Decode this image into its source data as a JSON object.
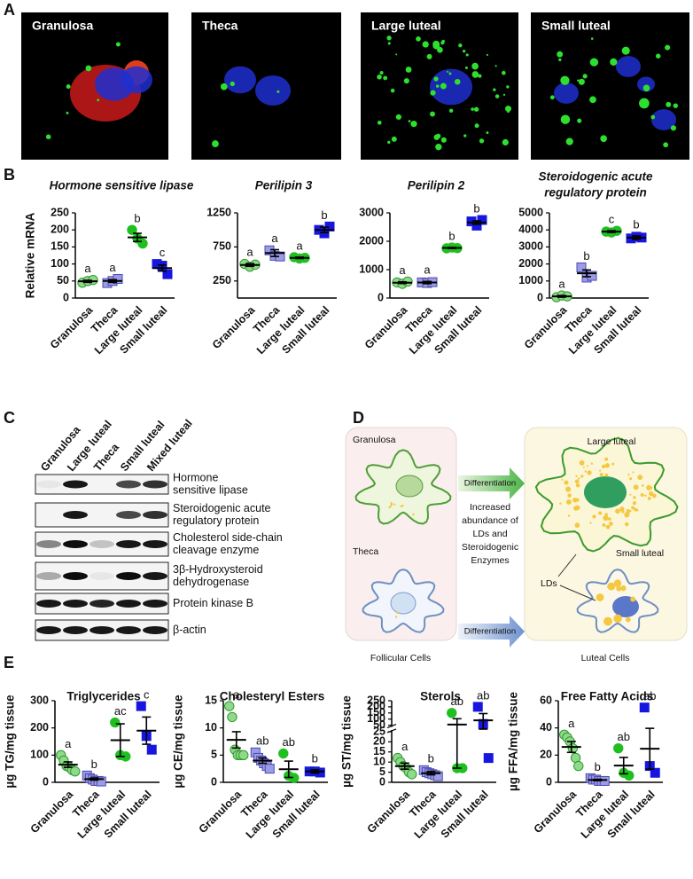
{
  "panel_labels": [
    "A",
    "B",
    "C",
    "D",
    "E"
  ],
  "images": [
    "Granulosa",
    "Theca",
    "Large luteal",
    "Small luteal"
  ],
  "chart_data": [
    {
      "type": "dotplot",
      "title": "Hormone sensitive lipase",
      "ylabel": "Relative mRNA",
      "categories": [
        "Granulosa",
        "Theca",
        "Large luteal",
        "Small luteal"
      ],
      "points": [
        [
          45,
          50,
          53
        ],
        [
          44,
          50,
          56
        ],
        [
          200,
          175,
          160
        ],
        [
          100,
          95,
          70
        ]
      ],
      "means": [
        49,
        50,
        178,
        88
      ],
      "errors": [
        3,
        4,
        12,
        9
      ],
      "annotations": [
        "a",
        "a",
        "b",
        "c"
      ],
      "ylim": [
        0,
        250
      ],
      "yticks": [
        0,
        50,
        100,
        150,
        200,
        250
      ],
      "markers": [
        "circle",
        "square",
        "circle",
        "square"
      ],
      "colors": [
        "#8fd98a",
        "#9c9ce6",
        "#1fbf1f",
        "#1616e0"
      ],
      "edgecolors": [
        "#2e9a2e",
        "#4a4ab0",
        "#1fbf1f",
        "#1616e0"
      ]
    },
    {
      "type": "dotplot",
      "title": "Perilipin 3",
      "categories": [
        "Granulosa",
        "Theca",
        "Large luteal",
        "Small luteal"
      ],
      "points": [
        [
          500,
          460,
          490
        ],
        [
          700,
          620,
          610
        ],
        [
          600,
          580,
          590
        ],
        [
          1000,
          950,
          1050
        ]
      ],
      "means": [
        485,
        660,
        590,
        1000
      ],
      "errors": [
        20,
        50,
        10,
        40
      ],
      "annotations": [
        "a",
        "a",
        "a",
        "b"
      ],
      "ylim": [
        0,
        1250
      ],
      "yticks": [
        250,
        750,
        1250
      ],
      "markers": [
        "circle",
        "square",
        "circle",
        "square"
      ],
      "colors": [
        "#8fd98a",
        "#9c9ce6",
        "#1fbf1f",
        "#1616e0"
      ],
      "edgecolors": [
        "#2e9a2e",
        "#4a4ab0",
        "#1fbf1f",
        "#1616e0"
      ]
    },
    {
      "type": "dotplot",
      "title": "Perilipin 2",
      "categories": [
        "Granulosa",
        "Theca",
        "Large luteal",
        "Small luteal"
      ],
      "points": [
        [
          550,
          500,
          580
        ],
        [
          550,
          530,
          560
        ],
        [
          1750,
          1780,
          1760
        ],
        [
          2700,
          2550,
          2750
        ]
      ],
      "means": [
        540,
        545,
        1765,
        2660
      ],
      "errors": [
        30,
        40,
        20,
        60
      ],
      "annotations": [
        "a",
        "a",
        "b",
        "b"
      ],
      "ylim": [
        0,
        3000
      ],
      "yticks": [
        0,
        1000,
        2000,
        3000
      ],
      "markers": [
        "circle",
        "square",
        "circle",
        "square"
      ],
      "colors": [
        "#8fd98a",
        "#9c9ce6",
        "#1fbf1f",
        "#1616e0"
      ],
      "edgecolors": [
        "#2e9a2e",
        "#4a4ab0",
        "#1fbf1f",
        "#1616e0"
      ]
    },
    {
      "type": "dotplot",
      "title": [
        "Steroidogenic acute",
        "regulatory protein"
      ],
      "categories": [
        "Granulosa",
        "Theca",
        "Large luteal",
        "Small luteal"
      ],
      "points": [
        [
          50,
          150,
          100
        ],
        [
          1800,
          1200,
          1300
        ],
        [
          3900,
          3850,
          3950
        ],
        [
          3500,
          3600,
          3550
        ]
      ],
      "means": [
        100,
        1450,
        3900,
        3550
      ],
      "errors": [
        50,
        200,
        50,
        100
      ],
      "annotations": [
        "a",
        "b",
        "c",
        "b"
      ],
      "ylim": [
        0,
        5000
      ],
      "yticks": [
        0,
        1000,
        2000,
        3000,
        4000,
        5000
      ],
      "markers": [
        "circle",
        "square",
        "circle",
        "square"
      ],
      "colors": [
        "#8fd98a",
        "#9c9ce6",
        "#1fbf1f",
        "#1616e0"
      ],
      "edgecolors": [
        "#2e9a2e",
        "#4a4ab0",
        "#1fbf1f",
        "#1616e0"
      ]
    },
    {
      "type": "dotplot",
      "title": "Triglycerides",
      "ylabel": "µg TG/mg tissue",
      "categories": [
        "Granulosa",
        "Theca",
        "Large luteal",
        "Small luteal"
      ],
      "points": [
        [
          100,
          80,
          60,
          55,
          45,
          40
        ],
        [
          25,
          15,
          10,
          5,
          5,
          3
        ],
        [
          220,
          100,
          95
        ],
        [
          280,
          170,
          120
        ]
      ],
      "means": [
        65,
        12,
        155,
        190
      ],
      "errors": [
        10,
        4,
        60,
        50
      ],
      "annotations": [
        "a",
        "b",
        "ac",
        "c"
      ],
      "ylim": [
        0,
        300
      ],
      "yticks": [
        0,
        100,
        200,
        300
      ],
      "markers": [
        "circle",
        "square",
        "circle",
        "square"
      ],
      "colors": [
        "#8fd98a",
        "#9c9ce6",
        "#1fbf1f",
        "#1616e0"
      ],
      "edgecolors": [
        "#2e9a2e",
        "#4a4ab0",
        "#1fbf1f",
        "#1616e0"
      ]
    },
    {
      "type": "dotplot",
      "title": "Cholesteryl Esters",
      "ylabel": "µg CE/mg tissue",
      "categories": [
        "Granulosa",
        "Theca",
        "Large luteal",
        "Small luteal"
      ],
      "points": [
        [
          14,
          12,
          6,
          5,
          5,
          5
        ],
        [
          5.5,
          4.5,
          4,
          3.5,
          3,
          2.5
        ],
        [
          5.3,
          1.2,
          0.8
        ],
        [
          2,
          2,
          1.8
        ]
      ],
      "means": [
        7.8,
        4,
        2.4,
        2
      ],
      "errors": [
        1.5,
        0.5,
        1.5,
        0.3
      ],
      "annotations": [
        "a",
        "ab",
        "ab",
        "b"
      ],
      "ylim": [
        0,
        15
      ],
      "yticks": [
        0,
        5,
        10,
        15
      ],
      "markers": [
        "circle",
        "square",
        "circle",
        "square"
      ],
      "colors": [
        "#8fd98a",
        "#9c9ce6",
        "#1fbf1f",
        "#1616e0"
      ],
      "edgecolors": [
        "#2e9a2e",
        "#4a4ab0",
        "#1fbf1f",
        "#1616e0"
      ]
    },
    {
      "type": "dotplot",
      "title": "Sterols",
      "ylabel": "µg ST/mg tissue",
      "categories": [
        "Granulosa",
        "Theca",
        "Large luteal",
        "Small luteal"
      ],
      "points": [
        [
          12,
          10,
          8,
          7,
          5,
          4
        ],
        [
          6,
          5,
          4.5,
          4,
          3.5,
          3
        ],
        [
          150,
          7,
          7
        ],
        [
          200,
          60,
          12
        ]
      ],
      "means": [
        8,
        4.5,
        55,
        90
      ],
      "errors": [
        1.5,
        0.8,
        48,
        55
      ],
      "annotations": [
        "a",
        "b",
        "ab",
        "ab"
      ],
      "ylim": [
        0,
        250
      ],
      "ybreak": [
        25,
        50
      ],
      "yticks": [
        0,
        5,
        10,
        15,
        20,
        25,
        50,
        100,
        150,
        200,
        250
      ],
      "markers": [
        "circle",
        "square",
        "circle",
        "square"
      ],
      "colors": [
        "#8fd98a",
        "#9c9ce6",
        "#1fbf1f",
        "#1616e0"
      ],
      "edgecolors": [
        "#2e9a2e",
        "#4a4ab0",
        "#1fbf1f",
        "#1616e0"
      ]
    },
    {
      "type": "dotplot",
      "title": "Free Fatty Acids",
      "ylabel": "µg FFA/mg tissue",
      "categories": [
        "Granulosa",
        "Theca",
        "Large luteal",
        "Small luteal"
      ],
      "points": [
        [
          35,
          33,
          30,
          25,
          18,
          12
        ],
        [
          3,
          2,
          2,
          1,
          1,
          1
        ],
        [
          25,
          7,
          5
        ],
        [
          55,
          12,
          7
        ]
      ],
      "means": [
        26,
        1.7,
        12.3,
        24.7
      ],
      "errors": [
        4,
        0.5,
        6,
        15
      ],
      "annotations": [
        "a",
        "b",
        "ab",
        "ab"
      ],
      "ylim": [
        0,
        60
      ],
      "yticks": [
        0,
        20,
        40,
        60
      ],
      "markers": [
        "circle",
        "square",
        "circle",
        "square"
      ],
      "colors": [
        "#8fd98a",
        "#9c9ce6",
        "#1fbf1f",
        "#1616e0"
      ],
      "edgecolors": [
        "#2e9a2e",
        "#4a4ab0",
        "#1fbf1f",
        "#1616e0"
      ]
    }
  ],
  "blot": {
    "lanes": [
      "Granulosa",
      "Large luteal",
      "Theca",
      "Small luteal",
      "Mixed luteal"
    ],
    "proteins": [
      [
        "Hormone",
        "sensitive lipase"
      ],
      [
        "Steroidogenic acute",
        "regulatory protein"
      ],
      [
        "Cholesterol side-chain",
        "cleavage enzyme"
      ],
      [
        "3β-Hydroxysteroid",
        "dehydrogenase"
      ],
      [
        "Protein kinase B"
      ],
      [
        "β-actin"
      ]
    ]
  },
  "diagram": {
    "granulosa": "Granulosa",
    "theca": "Theca",
    "follicular": "Follicular Cells",
    "arrow_top": "Differentiation",
    "arrow_bottom": "Differentiation",
    "middle": [
      "Increased",
      "abundance of",
      "LDs and",
      "Steroidogenic",
      "Enzymes"
    ],
    "large": "Large luteal",
    "small": "Small luteal",
    "lds": "LDs",
    "luteal": "Luteal Cells"
  }
}
